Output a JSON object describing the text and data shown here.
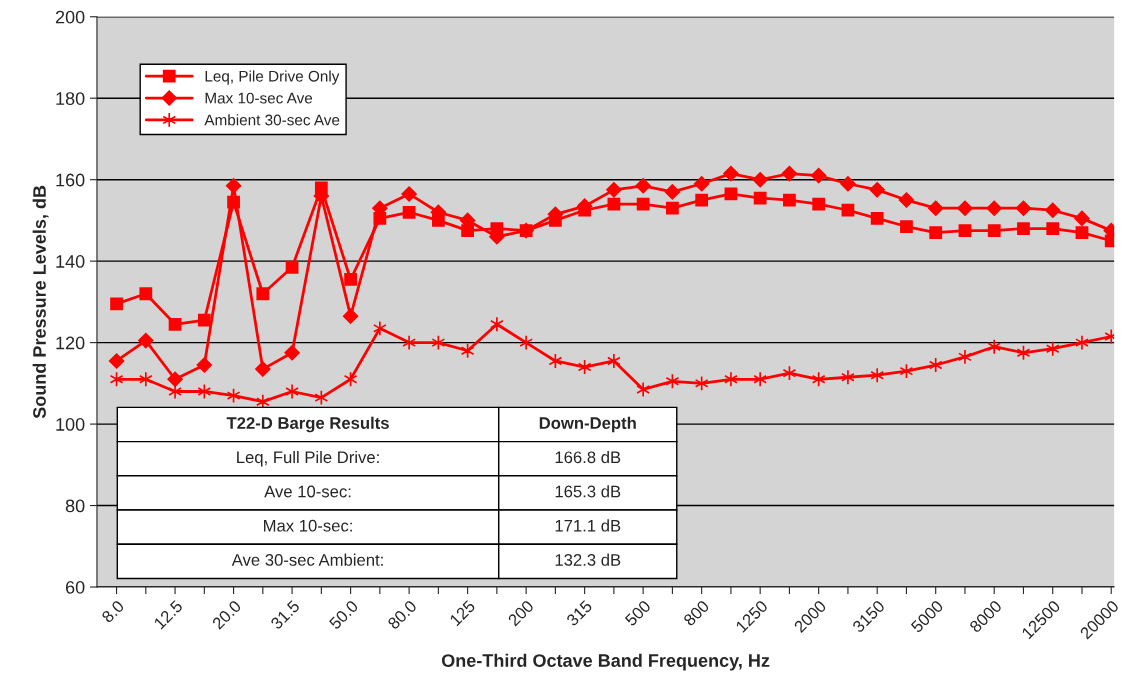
{
  "chart_data": {
    "type": "line",
    "xlabel": "One-Third Octave Band Frequency, Hz",
    "ylabel": "Sound Pressure Levels, dB",
    "categories": [
      "8.0",
      null,
      "12.5",
      null,
      "20.0",
      null,
      "31.5",
      null,
      "50.0",
      null,
      "80.0",
      null,
      "125",
      null,
      "200",
      null,
      "315",
      null,
      "500",
      null,
      "800",
      null,
      "1250",
      null,
      "2000",
      null,
      "3150",
      null,
      "5000",
      null,
      "8000",
      null,
      "12500",
      null,
      "20000"
    ],
    "series": [
      {
        "name": "Leq, Pile Drive Only",
        "color": "#ff0000",
        "marker": "square",
        "values": [
          129.5,
          132,
          124.5,
          125.5,
          154.5,
          132,
          138.5,
          158,
          135.5,
          150.5,
          152,
          150,
          147.5,
          148,
          147.5,
          150,
          152.5,
          154,
          154,
          153,
          155,
          156.5,
          155.5,
          155,
          154,
          152.5,
          150.5,
          148.5,
          147,
          147.5,
          147.5,
          148,
          148,
          147,
          145
        ]
      },
      {
        "name": "Max 10-sec Ave",
        "color": "#ff0000",
        "marker": "diamond",
        "values": [
          115.5,
          120.5,
          111,
          114.5,
          158.5,
          113.5,
          117.5,
          156,
          126.5,
          153,
          156.5,
          152,
          150,
          146,
          147.5,
          151.5,
          153.5,
          157.5,
          158.5,
          157,
          159,
          161.5,
          160,
          161.5,
          161,
          159,
          157.5,
          155,
          153,
          153,
          153,
          153,
          152.5,
          150.5,
          147.5
        ]
      },
      {
        "name": "Ambient 30-sec Ave",
        "color": "#ff0000",
        "marker": "cross",
        "values": [
          111,
          111,
          108,
          108,
          107,
          105.5,
          108,
          106.5,
          111,
          123.5,
          120,
          120,
          118,
          124.5,
          120,
          115.5,
          114,
          115.5,
          108.5,
          110.5,
          110,
          111,
          111,
          112.5,
          111,
          111.5,
          112,
          113,
          114.5,
          116.5,
          119,
          117.5,
          118.5,
          120,
          121.5
        ]
      }
    ],
    "ylim": [
      60,
      200
    ],
    "yticks": [
      60,
      80,
      100,
      120,
      140,
      160,
      180,
      200
    ],
    "grid": "y",
    "legend": "top left",
    "annotations": [
      "T22-D Barge Results",
      "Down-Depth",
      "Leq, Full Pile Drive:",
      "166.8 dB",
      "Ave 10-sec:",
      "165.3 dB",
      "Max 10-sec:",
      "171.1 dB",
      "Ave 30-sec Ambient:",
      "132.3 dB"
    ]
  }
}
